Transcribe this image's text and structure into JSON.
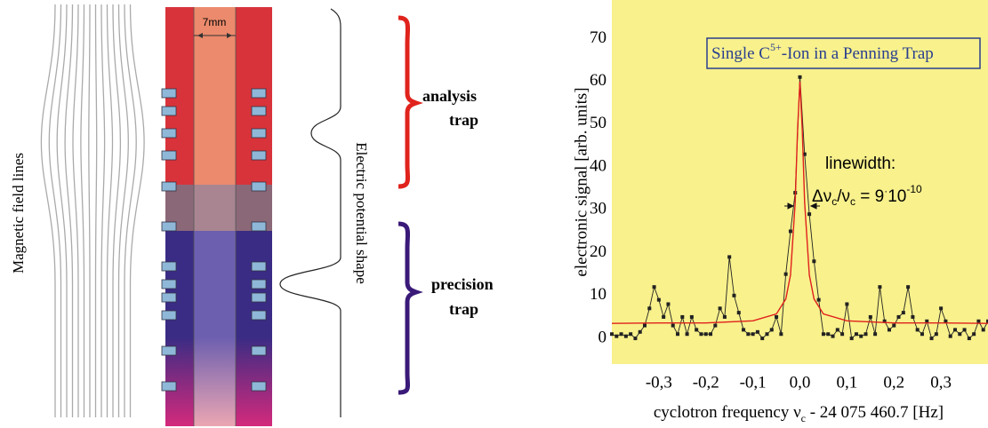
{
  "diagram": {
    "field_label": "Magnetic field lines",
    "width_label": "7mm",
    "potential_label": "Electric potential shape",
    "analysis_label": [
      "analysis",
      "trap"
    ],
    "precision_label": [
      "precision",
      "trap"
    ]
  },
  "chart_data": {
    "type": "line",
    "title": [
      "Single C",
      "5+",
      "-Ion in a Penning Trap"
    ],
    "annotation": "linewidth:",
    "formula": [
      "Δν",
      "c",
      "/ν",
      "c",
      " = 9",
      "·",
      "10",
      "-10"
    ],
    "ylabel": "electronic signal [arb. units]",
    "xlabel": [
      "cyclotron frequency ν",
      "c",
      " - 24 075 460.7 [Hz]"
    ],
    "xlim": [
      -0.4,
      0.4
    ],
    "ylim": [
      -6,
      79
    ],
    "xticks": [
      {
        "value": -0.3,
        "label": "-0,3"
      },
      {
        "value": -0.2,
        "label": "-0,2"
      },
      {
        "value": -0.1,
        "label": "-0,1"
      },
      {
        "value": 0,
        "label": "0,0"
      },
      {
        "value": 0.1,
        "label": "0,1"
      },
      {
        "value": 0.2,
        "label": "0,2"
      },
      {
        "value": 0.3,
        "label": "0,3"
      }
    ],
    "yticks": [
      0,
      10,
      20,
      30,
      40,
      50,
      60,
      70
    ],
    "grid": false,
    "background": "#f8f18c",
    "series": [
      {
        "color": "#222222",
        "markers": true,
        "x": [
          -0.4,
          -0.39,
          -0.38,
          -0.37,
          -0.36,
          -0.35,
          -0.34,
          -0.33,
          -0.32,
          -0.31,
          -0.3,
          -0.29,
          -0.28,
          -0.27,
          -0.26,
          -0.25,
          -0.24,
          -0.23,
          -0.22,
          -0.21,
          -0.2,
          -0.19,
          -0.18,
          -0.17,
          -0.16,
          -0.15,
          -0.14,
          -0.13,
          -0.12,
          -0.11,
          -0.1,
          -0.09,
          -0.08,
          -0.07,
          -0.06,
          -0.05,
          -0.04,
          -0.03,
          -0.02,
          -0.01,
          0,
          0.01,
          0.02,
          0.03,
          0.04,
          0.05,
          0.06,
          0.07,
          0.08,
          0.09,
          0.1,
          0.11,
          0.12,
          0.13,
          0.14,
          0.15,
          0.16,
          0.17,
          0.18,
          0.19,
          0.2,
          0.21,
          0.22,
          0.23,
          0.24,
          0.25,
          0.26,
          0.27,
          0.28,
          0.29,
          0.3,
          0.31,
          0.32,
          0.33,
          0.34,
          0.35,
          0.36,
          0.37,
          0.38,
          0.39,
          0.4
        ],
        "values": [
          1,
          0.5,
          1,
          0.5,
          1,
          0,
          1.5,
          3,
          7,
          12,
          9,
          5,
          8,
          3,
          1,
          5,
          1,
          5,
          2,
          1,
          1,
          1,
          3,
          7,
          5,
          19,
          10,
          6,
          2,
          1,
          1,
          1.5,
          0,
          1,
          2,
          5,
          1,
          15,
          25,
          34,
          61,
          43,
          29,
          18,
          9,
          1,
          1,
          0.5,
          2,
          1,
          8,
          0,
          1,
          0.5,
          1,
          5,
          1,
          12,
          4,
          2,
          3,
          5,
          6,
          12,
          5,
          2,
          1,
          4,
          0,
          1,
          7,
          4,
          0.5,
          2,
          1,
          2,
          0,
          1,
          4,
          2,
          4
        ]
      },
      {
        "color": "#e0201c",
        "markers": false,
        "x": [
          -0.4,
          -0.3,
          -0.2,
          -0.1,
          -0.05,
          -0.03,
          -0.02,
          -0.01,
          -0.005,
          0,
          0.005,
          0.01,
          0.02,
          0.03,
          0.05,
          0.1,
          0.2,
          0.3,
          0.4
        ],
        "values": [
          3.5,
          3.6,
          3.6,
          4.1,
          5.7,
          9.2,
          14.8,
          31.8,
          48.7,
          60,
          48.7,
          31.8,
          14.8,
          9.2,
          5.7,
          4.1,
          3.6,
          3.6,
          3.5
        ]
      }
    ]
  }
}
